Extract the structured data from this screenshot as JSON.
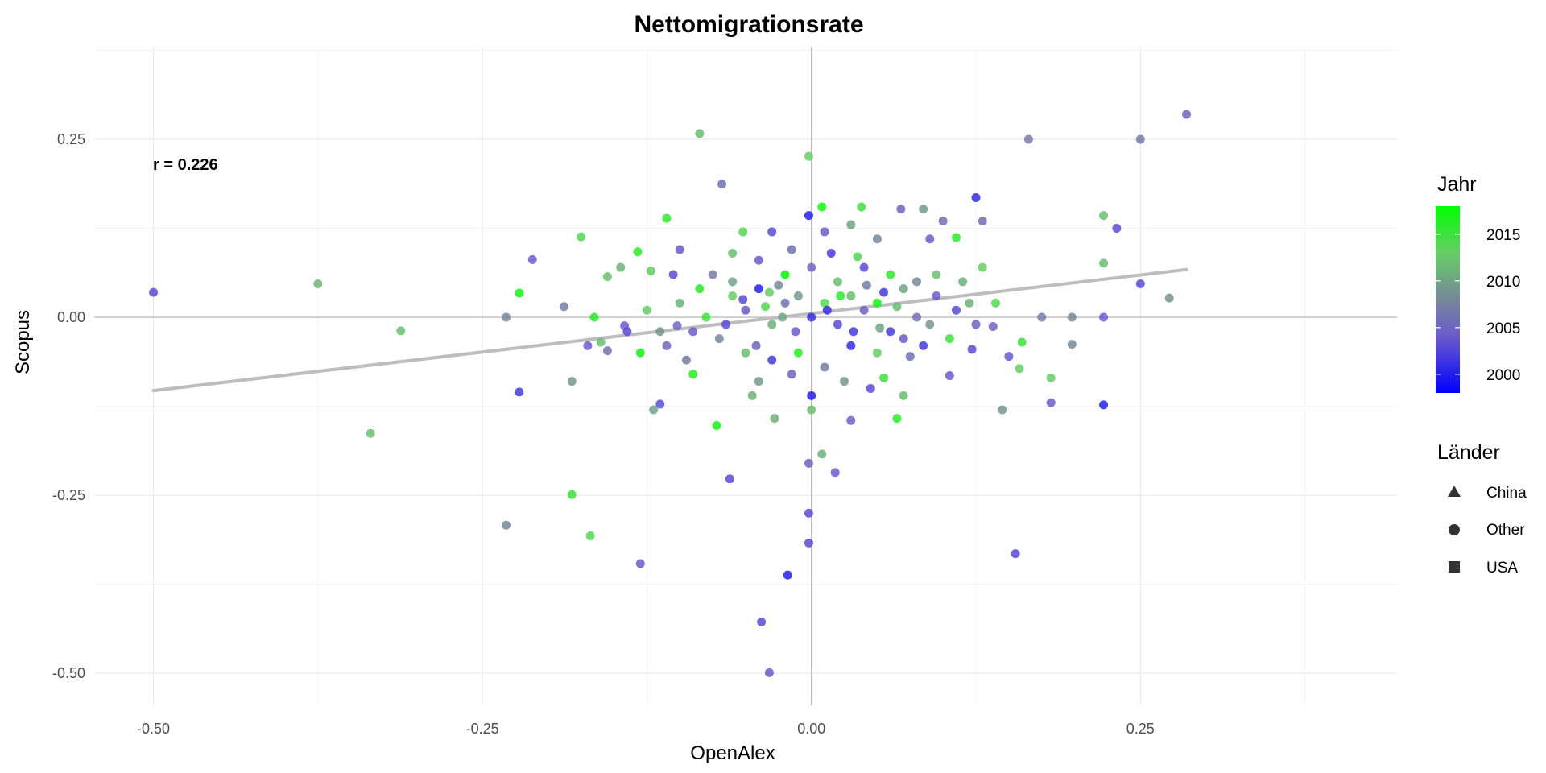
{
  "chart_data": {
    "type": "scatter",
    "title": "Nettomigrationsrate",
    "xlabel": "OpenAlex",
    "ylabel": "Scopus",
    "xlim": [
      -0.545,
      0.445
    ],
    "ylim": [
      -0.545,
      0.38
    ],
    "x_ticks": [
      "-0.50",
      "-0.25",
      "0.00",
      "0.25"
    ],
    "y_ticks": [
      "0.25",
      "0.00",
      "-0.25",
      "-0.50"
    ],
    "grid": true,
    "annotation": "r = 0.226",
    "trend_line": {
      "x": [
        -0.5,
        0.285
      ],
      "y": [
        -0.103,
        0.067
      ],
      "color": "#bdbdbd"
    },
    "legend_color": {
      "title": "Jahr",
      "min": 1998,
      "max": 2018,
      "ticks": [
        "2015",
        "2010",
        "2005",
        "2000"
      ],
      "colors": [
        "#0000ff",
        "#6a5acd",
        "#778899",
        "#66cd66",
        "#00ff00"
      ]
    },
    "legend_shape": {
      "title": "Länder",
      "entries": [
        {
          "label": "China",
          "shape": "triangle"
        },
        {
          "label": "Other",
          "shape": "circle"
        },
        {
          "label": "USA",
          "shape": "square"
        }
      ]
    },
    "points": [
      {
        "x": -0.5,
        "y": 0.035,
        "year": 2003
      },
      {
        "x": -0.375,
        "y": 0.047,
        "year": 2011
      },
      {
        "x": -0.335,
        "y": -0.163,
        "year": 2012
      },
      {
        "x": -0.312,
        "y": -0.019,
        "year": 2012
      },
      {
        "x": -0.232,
        "y": 0.0,
        "year": 2008
      },
      {
        "x": -0.232,
        "y": -0.292,
        "year": 2008
      },
      {
        "x": -0.222,
        "y": -0.105,
        "year": 2002
      },
      {
        "x": -0.222,
        "y": 0.034,
        "year": 2017
      },
      {
        "x": -0.212,
        "y": 0.081,
        "year": 2004
      },
      {
        "x": -0.188,
        "y": 0.015,
        "year": 2007
      },
      {
        "x": -0.182,
        "y": -0.09,
        "year": 2009
      },
      {
        "x": -0.182,
        "y": -0.249,
        "year": 2015
      },
      {
        "x": -0.175,
        "y": 0.113,
        "year": 2014
      },
      {
        "x": -0.168,
        "y": -0.307,
        "year": 2014
      },
      {
        "x": -0.155,
        "y": -0.047,
        "year": 2006
      },
      {
        "x": -0.155,
        "y": 0.057,
        "year": 2012
      },
      {
        "x": -0.142,
        "y": -0.012,
        "year": 2004
      },
      {
        "x": -0.132,
        "y": 0.092,
        "year": 2016
      },
      {
        "x": -0.13,
        "y": -0.346,
        "year": 2004
      },
      {
        "x": -0.122,
        "y": 0.065,
        "year": 2013
      },
      {
        "x": -0.115,
        "y": -0.122,
        "year": 2003
      },
      {
        "x": -0.11,
        "y": 0.139,
        "year": 2016
      },
      {
        "x": -0.102,
        "y": -0.012,
        "year": 2005
      },
      {
        "x": -0.085,
        "y": 0.258,
        "year": 2012
      },
      {
        "x": -0.072,
        "y": -0.152,
        "year": 2017
      },
      {
        "x": -0.068,
        "y": 0.187,
        "year": 2006
      },
      {
        "x": -0.062,
        "y": -0.227,
        "year": 2003
      },
      {
        "x": -0.052,
        "y": 0.12,
        "year": 2014
      },
      {
        "x": -0.038,
        "y": -0.428,
        "year": 2003
      },
      {
        "x": -0.032,
        "y": -0.499,
        "year": 2004
      },
      {
        "x": -0.028,
        "y": -0.142,
        "year": 2011
      },
      {
        "x": -0.018,
        "y": -0.362,
        "year": 2000
      },
      {
        "x": -0.002,
        "y": 0.226,
        "year": 2013
      },
      {
        "x": -0.002,
        "y": -0.205,
        "year": 2005
      },
      {
        "x": -0.002,
        "y": -0.275,
        "year": 2003
      },
      {
        "x": -0.002,
        "y": -0.317,
        "year": 2003
      },
      {
        "x": -0.002,
        "y": 0.143,
        "year": 2000
      },
      {
        "x": 0.008,
        "y": 0.155,
        "year": 2017
      },
      {
        "x": 0.008,
        "y": -0.192,
        "year": 2011
      },
      {
        "x": 0.018,
        "y": -0.218,
        "year": 2004
      },
      {
        "x": 0.03,
        "y": -0.145,
        "year": 2005
      },
      {
        "x": 0.038,
        "y": 0.155,
        "year": 2015
      },
      {
        "x": 0.065,
        "y": -0.142,
        "year": 2016
      },
      {
        "x": 0.068,
        "y": 0.152,
        "year": 2005
      },
      {
        "x": 0.085,
        "y": 0.152,
        "year": 2009
      },
      {
        "x": 0.125,
        "y": 0.168,
        "year": 2001
      },
      {
        "x": 0.138,
        "y": -0.013,
        "year": 2005
      },
      {
        "x": 0.145,
        "y": -0.13,
        "year": 2009
      },
      {
        "x": 0.155,
        "y": -0.332,
        "year": 2003
      },
      {
        "x": 0.158,
        "y": -0.072,
        "year": 2013
      },
      {
        "x": 0.165,
        "y": 0.25,
        "year": 2007
      },
      {
        "x": 0.175,
        "y": 0.0,
        "year": 2007
      },
      {
        "x": 0.182,
        "y": -0.085,
        "year": 2013
      },
      {
        "x": 0.182,
        "y": -0.12,
        "year": 2004
      },
      {
        "x": 0.198,
        "y": 0.0,
        "year": 2008
      },
      {
        "x": 0.198,
        "y": -0.038,
        "year": 2008
      },
      {
        "x": 0.222,
        "y": 0.143,
        "year": 2012
      },
      {
        "x": 0.222,
        "y": 0.076,
        "year": 2012
      },
      {
        "x": 0.222,
        "y": 0.0,
        "year": 2004
      },
      {
        "x": 0.222,
        "y": -0.123,
        "year": 2000
      },
      {
        "x": 0.232,
        "y": 0.125,
        "year": 2003
      },
      {
        "x": 0.25,
        "y": 0.25,
        "year": 2007
      },
      {
        "x": 0.25,
        "y": 0.047,
        "year": 2003
      },
      {
        "x": 0.272,
        "y": 0.027,
        "year": 2009
      },
      {
        "x": 0.285,
        "y": 0.285,
        "year": 2005
      },
      {
        "x": 0.11,
        "y": 0.112,
        "year": 2016
      },
      {
        "x": 0.105,
        "y": -0.082,
        "year": 2004
      },
      {
        "x": 0.122,
        "y": -0.045,
        "year": 2003
      },
      {
        "x": 0.13,
        "y": 0.07,
        "year": 2013
      },
      {
        "x": 0.14,
        "y": 0.02,
        "year": 2014
      },
      {
        "x": 0.15,
        "y": -0.055,
        "year": 2004
      },
      {
        "x": 0.16,
        "y": -0.035,
        "year": 2015
      },
      {
        "x": 0.12,
        "y": 0.02,
        "year": 2011
      },
      {
        "x": 0.095,
        "y": 0.06,
        "year": 2012
      },
      {
        "x": 0.085,
        "y": -0.04,
        "year": 2002
      },
      {
        "x": 0.07,
        "y": -0.11,
        "year": 2012
      },
      {
        "x": 0.055,
        "y": -0.085,
        "year": 2015
      },
      {
        "x": -0.09,
        "y": -0.08,
        "year": 2016
      },
      {
        "x": -0.1,
        "y": 0.095,
        "year": 2004
      },
      {
        "x": -0.12,
        "y": -0.13,
        "year": 2010
      },
      {
        "x": -0.14,
        "y": -0.02,
        "year": 2003
      },
      {
        "x": -0.06,
        "y": 0.09,
        "year": 2012
      },
      {
        "x": -0.04,
        "y": -0.09,
        "year": 2009
      },
      {
        "x": 0.03,
        "y": 0.13,
        "year": 2010
      },
      {
        "x": 0.1,
        "y": 0.135,
        "year": 2006
      },
      {
        "x": 0.13,
        "y": 0.135,
        "year": 2006
      },
      {
        "x": 0.09,
        "y": 0.11,
        "year": 2004
      },
      {
        "x": -0.03,
        "y": 0.12,
        "year": 2003
      },
      {
        "x": 0.01,
        "y": 0.12,
        "year": 2004
      },
      {
        "x": 0.05,
        "y": 0.11,
        "year": 2008
      },
      {
        "x": -0.075,
        "y": 0.06,
        "year": 2007
      },
      {
        "x": -0.06,
        "y": 0.03,
        "year": 2013
      },
      {
        "x": -0.05,
        "y": 0.01,
        "year": 2004
      },
      {
        "x": -0.04,
        "y": 0.04,
        "year": 2000
      },
      {
        "x": -0.03,
        "y": -0.01,
        "year": 2011
      },
      {
        "x": -0.02,
        "y": 0.02,
        "year": 2006
      },
      {
        "x": -0.01,
        "y": 0.03,
        "year": 2009
      },
      {
        "x": 0.0,
        "y": 0.0,
        "year": 2001
      },
      {
        "x": 0.01,
        "y": 0.02,
        "year": 2014
      },
      {
        "x": 0.02,
        "y": -0.01,
        "year": 2003
      },
      {
        "x": 0.03,
        "y": 0.03,
        "year": 2012
      },
      {
        "x": 0.04,
        "y": 0.01,
        "year": 2005
      },
      {
        "x": 0.05,
        "y": 0.02,
        "year": 2017
      },
      {
        "x": 0.06,
        "y": -0.02,
        "year": 2002
      },
      {
        "x": 0.07,
        "y": 0.04,
        "year": 2010
      },
      {
        "x": 0.08,
        "y": 0.0,
        "year": 2006
      },
      {
        "x": -0.07,
        "y": -0.03,
        "year": 2008
      },
      {
        "x": -0.08,
        "y": 0.0,
        "year": 2015
      },
      {
        "x": -0.09,
        "y": -0.02,
        "year": 2004
      },
      {
        "x": -0.1,
        "y": 0.02,
        "year": 2011
      },
      {
        "x": -0.11,
        "y": -0.04,
        "year": 2005
      },
      {
        "x": -0.05,
        "y": -0.05,
        "year": 2012
      },
      {
        "x": -0.03,
        "y": -0.06,
        "year": 2002
      },
      {
        "x": -0.01,
        "y": -0.05,
        "year": 2016
      },
      {
        "x": 0.01,
        "y": -0.07,
        "year": 2007
      },
      {
        "x": 0.03,
        "y": -0.04,
        "year": 2001
      },
      {
        "x": 0.05,
        "y": -0.05,
        "year": 2013
      },
      {
        "x": 0.07,
        "y": -0.03,
        "year": 2004
      },
      {
        "x": 0.09,
        "y": -0.01,
        "year": 2009
      },
      {
        "x": 0.11,
        "y": 0.01,
        "year": 2003
      },
      {
        "x": -0.02,
        "y": 0.06,
        "year": 2018
      },
      {
        "x": 0.0,
        "y": 0.07,
        "year": 2005
      },
      {
        "x": 0.02,
        "y": 0.05,
        "year": 2012
      },
      {
        "x": 0.04,
        "y": 0.07,
        "year": 2003
      },
      {
        "x": 0.06,
        "y": 0.06,
        "year": 2016
      },
      {
        "x": 0.08,
        "y": 0.05,
        "year": 2008
      },
      {
        "x": -0.04,
        "y": 0.08,
        "year": 2004
      },
      {
        "x": -0.06,
        "y": 0.05,
        "year": 2010
      },
      {
        "x": 0.015,
        "y": 0.09,
        "year": 2002
      },
      {
        "x": 0.035,
        "y": 0.085,
        "year": 2014
      },
      {
        "x": -0.015,
        "y": 0.095,
        "year": 2006
      },
      {
        "x": 0.045,
        "y": -0.1,
        "year": 2003
      },
      {
        "x": -0.045,
        "y": -0.11,
        "year": 2011
      },
      {
        "x": 0.0,
        "y": -0.11,
        "year": 2000
      },
      {
        "x": 0.0,
        "y": -0.13,
        "year": 2012
      },
      {
        "x": -0.015,
        "y": -0.08,
        "year": 2005
      },
      {
        "x": 0.025,
        "y": -0.09,
        "year": 2009
      },
      {
        "x": -0.035,
        "y": 0.015,
        "year": 2014
      },
      {
        "x": 0.055,
        "y": 0.035,
        "year": 2002
      },
      {
        "x": -0.025,
        "y": 0.045,
        "year": 2008
      },
      {
        "x": 0.065,
        "y": 0.015,
        "year": 2012
      },
      {
        "x": -0.065,
        "y": -0.01,
        "year": 2003
      },
      {
        "x": 0.075,
        "y": -0.055,
        "year": 2006
      },
      {
        "x": -0.085,
        "y": 0.04,
        "year": 2016
      },
      {
        "x": 0.095,
        "y": 0.03,
        "year": 2004
      },
      {
        "x": -0.095,
        "y": -0.06,
        "year": 2007
      },
      {
        "x": 0.105,
        "y": -0.03,
        "year": 2015
      },
      {
        "x": -0.105,
        "y": 0.06,
        "year": 2003
      },
      {
        "x": 0.115,
        "y": 0.05,
        "year": 2011
      },
      {
        "x": -0.115,
        "y": -0.02,
        "year": 2009
      },
      {
        "x": 0.125,
        "y": -0.01,
        "year": 2005
      },
      {
        "x": -0.125,
        "y": 0.01,
        "year": 2013
      },
      {
        "x": -0.13,
        "y": -0.05,
        "year": 2017
      },
      {
        "x": -0.145,
        "y": 0.07,
        "year": 2011
      },
      {
        "x": -0.16,
        "y": -0.035,
        "year": 2012
      },
      {
        "x": -0.165,
        "y": 0.0,
        "year": 2016
      },
      {
        "x": -0.17,
        "y": -0.04,
        "year": 2004
      },
      {
        "x": 0.012,
        "y": 0.01,
        "year": 2001
      },
      {
        "x": 0.022,
        "y": 0.03,
        "year": 2016
      },
      {
        "x": -0.012,
        "y": -0.02,
        "year": 2004
      },
      {
        "x": -0.022,
        "y": 0.0,
        "year": 2010
      },
      {
        "x": 0.032,
        "y": -0.02,
        "year": 2002
      },
      {
        "x": -0.032,
        "y": 0.035,
        "year": 2013
      },
      {
        "x": 0.042,
        "y": 0.045,
        "year": 2007
      },
      {
        "x": -0.042,
        "y": -0.04,
        "year": 2005
      },
      {
        "x": 0.052,
        "y": -0.015,
        "year": 2010
      },
      {
        "x": -0.052,
        "y": 0.025,
        "year": 2003
      }
    ]
  }
}
